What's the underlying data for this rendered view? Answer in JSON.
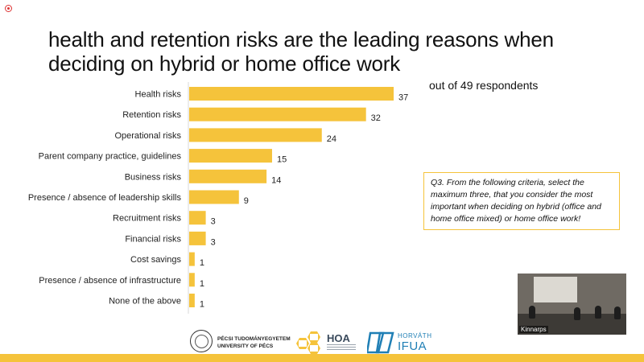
{
  "title": "health and retention risks are the leading reasons when deciding on hybrid or home office work",
  "subtitle": "out of 49 respondents",
  "question": "Q3. From the following criteria, select the maximum three, that you consider the most important when deciding on hybrid (office and home office mixed) or home office work!",
  "video": {
    "label": "Kinnarps"
  },
  "logos": {
    "pte_line1": "PÉCSI TUDOMÁNYEGYETEM",
    "pte_line2": "UNIVERSITY OF PÉCS",
    "hoa": "HOA",
    "ifua_top": "HORVÁTH",
    "ifua_bottom": "IFUA"
  },
  "colors": {
    "bar": "#f5c33b",
    "accent_band": "#f5c33b",
    "ifua_blue": "#1f7fb5"
  },
  "chart_data": {
    "type": "bar",
    "orientation": "horizontal",
    "categories": [
      "Health risks",
      "Retention risks",
      "Operational risks",
      "Parent company practice, guidelines",
      "Business risks",
      "Presence / absence of leadership skills",
      "Recruitment risks",
      "Financial risks",
      "Cost savings",
      "Presence / absence of infrastructure",
      "None of the above"
    ],
    "values": [
      37,
      32,
      24,
      15,
      14,
      9,
      3,
      3,
      1,
      1,
      1
    ],
    "xlim": [
      0,
      37
    ],
    "grid": false,
    "data_labels": true
  }
}
